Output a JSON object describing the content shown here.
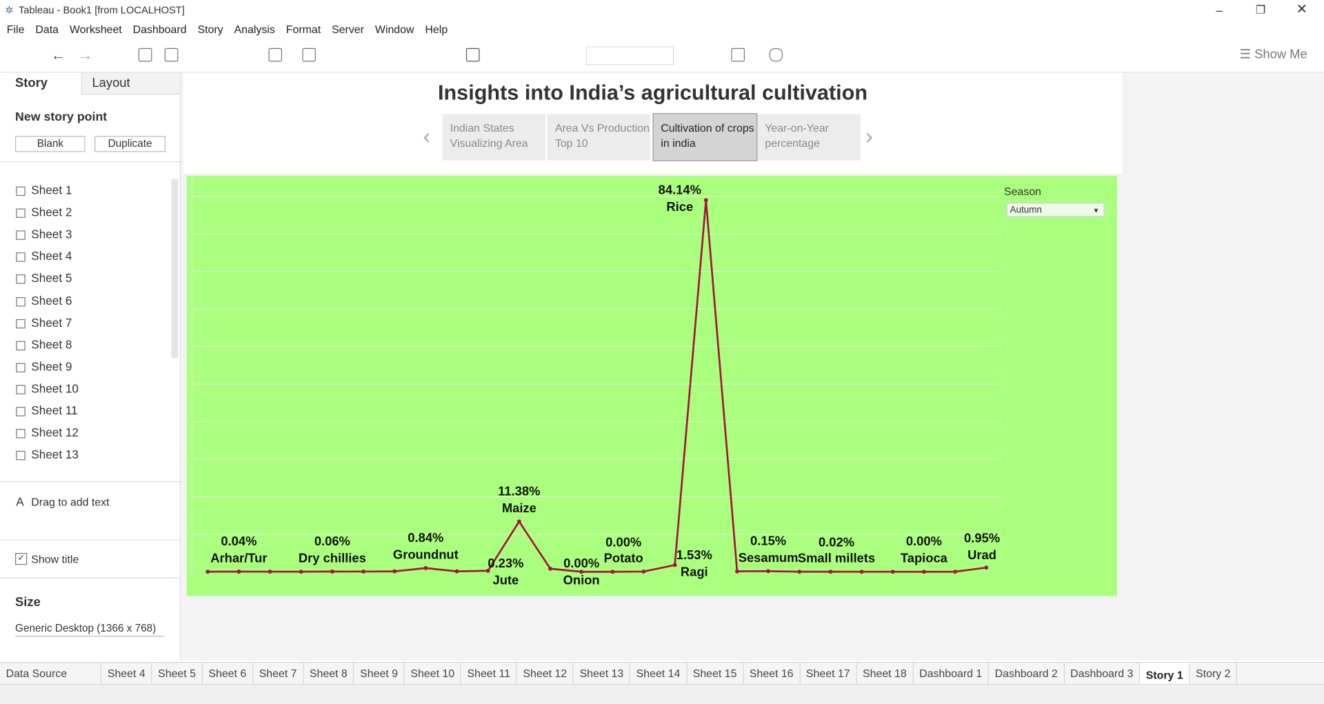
{
  "window": {
    "title": "Tableau - Book1 [from LOCALHOST]"
  },
  "menu": [
    "File",
    "Data",
    "Worksheet",
    "Dashboard",
    "Story",
    "Analysis",
    "Format",
    "Server",
    "Window",
    "Help"
  ],
  "toolbar": {
    "show_me": "Show Me"
  },
  "sidebar": {
    "tabs": [
      "Story",
      "Layout"
    ],
    "new_story_point": "New story point",
    "buttons": [
      "Blank",
      "Duplicate"
    ],
    "sheets": [
      "Sheet 1",
      "Sheet 2",
      "Sheet 3",
      "Sheet 4",
      "Sheet 5",
      "Sheet 6",
      "Sheet 7",
      "Sheet 8",
      "Sheet 9",
      "Sheet 10",
      "Sheet 11",
      "Sheet 12",
      "Sheet 13"
    ],
    "drag_text": "Drag to add text",
    "show_title": "Show title",
    "size_heading": "Size",
    "size_value": "Generic Desktop (1366 x 768)"
  },
  "story": {
    "title": "Insights into India’s agricultural cultivation",
    "points": [
      "Indian States Visualizing Area",
      "Area Vs Production Top 10",
      "Cultivation of crops in india",
      "Year-on-Year percentage"
    ],
    "selected": 2
  },
  "filter": {
    "label": "Season",
    "value": "Autumn"
  },
  "chart_data": {
    "type": "line",
    "color": "#a3163a",
    "background": "#aaff7f",
    "grid": true,
    "categories": [
      null,
      "Arhar/Tur",
      null,
      null,
      "Dry chillies",
      null,
      null,
      "Groundnut",
      null,
      "Jute",
      "Maize",
      null,
      "Onion",
      "Potato",
      null,
      "Ragi",
      "Rice",
      null,
      "Sesamum",
      null,
      "Small millets",
      null,
      null,
      "Tapioca",
      null,
      "Urad"
    ],
    "values": [
      0.02,
      0.04,
      0.03,
      0.02,
      0.06,
      0.05,
      0.1,
      0.84,
      0.1,
      0.23,
      11.38,
      0.7,
      0.0,
      0.0,
      0.05,
      1.53,
      84.14,
      0.1,
      0.15,
      0.02,
      0.02,
      0.01,
      0.01,
      0.0,
      0.02,
      0.95
    ],
    "value_labels": [
      null,
      "0.04%",
      null,
      null,
      "0.06%",
      null,
      null,
      "0.84%",
      null,
      "0.23%",
      "11.38%",
      null,
      "0.00%",
      "0.00%",
      null,
      "1.53%",
      "84.14%",
      null,
      "0.15%",
      null,
      "0.02%",
      null,
      null,
      "0.00%",
      null,
      "0.95%"
    ],
    "ylim": [
      -5.5,
      89.5
    ],
    "yticks": [
      8.5,
      17,
      25.5,
      34,
      42.5,
      51,
      59.5,
      68,
      76.5,
      85
    ]
  },
  "tabs": [
    "Data Source",
    "Sheet 4",
    "Sheet 5",
    "Sheet 6",
    "Sheet 7",
    "Sheet 8",
    "Sheet 9",
    "Sheet 10",
    "Sheet 11",
    "Sheet 12",
    "Sheet 13",
    "Sheet 14",
    "Sheet 15",
    "Sheet 16",
    "Sheet 17",
    "Sheet 18",
    "Dashboard 1",
    "Dashboard 2",
    "Dashboard 3",
    "Story 1",
    "Story 2"
  ],
  "selected_tab": 19
}
